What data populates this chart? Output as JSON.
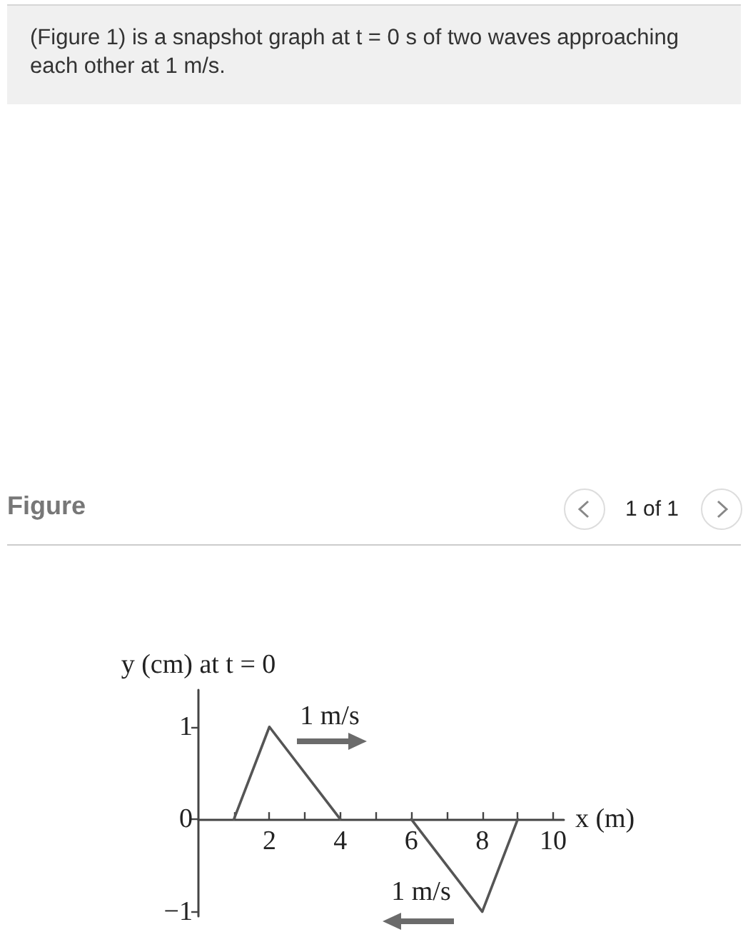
{
  "chart_data": {
    "type": "line",
    "title": "Figure",
    "xlabel": "x (m)",
    "ylabel": "y (cm) at t = 0",
    "annotations": [
      "(Figure 1) is a snapshot graph at t = 0 s of two waves approaching each other at 1 m/s.",
      "1 of 1",
      "1 m/s",
      "1 m/s"
    ],
    "series": [
      {
        "color": "#555555",
        "x": [
          1,
          2,
          4
        ],
        "values": [
          0,
          1,
          0
        ]
      },
      {
        "color": "#555555",
        "x": [
          6,
          8,
          9
        ],
        "values": [
          0,
          -1,
          0
        ]
      }
    ],
    "xlim": [
      0,
      10.3
    ],
    "ylim": [
      -1.05,
      1.4
    ],
    "xticks": [
      {
        "value": 1,
        "label": null
      },
      2,
      {
        "value": 3,
        "label": null
      },
      4,
      {
        "value": 5,
        "label": null
      },
      6,
      {
        "value": 7,
        "label": null
      },
      8,
      {
        "value": 9,
        "label": null
      },
      10
    ],
    "yticks": [
      {
        "value": -1,
        "label": "−1"
      },
      0,
      1
    ],
    "marker": "none",
    "line_style": "solid"
  }
}
